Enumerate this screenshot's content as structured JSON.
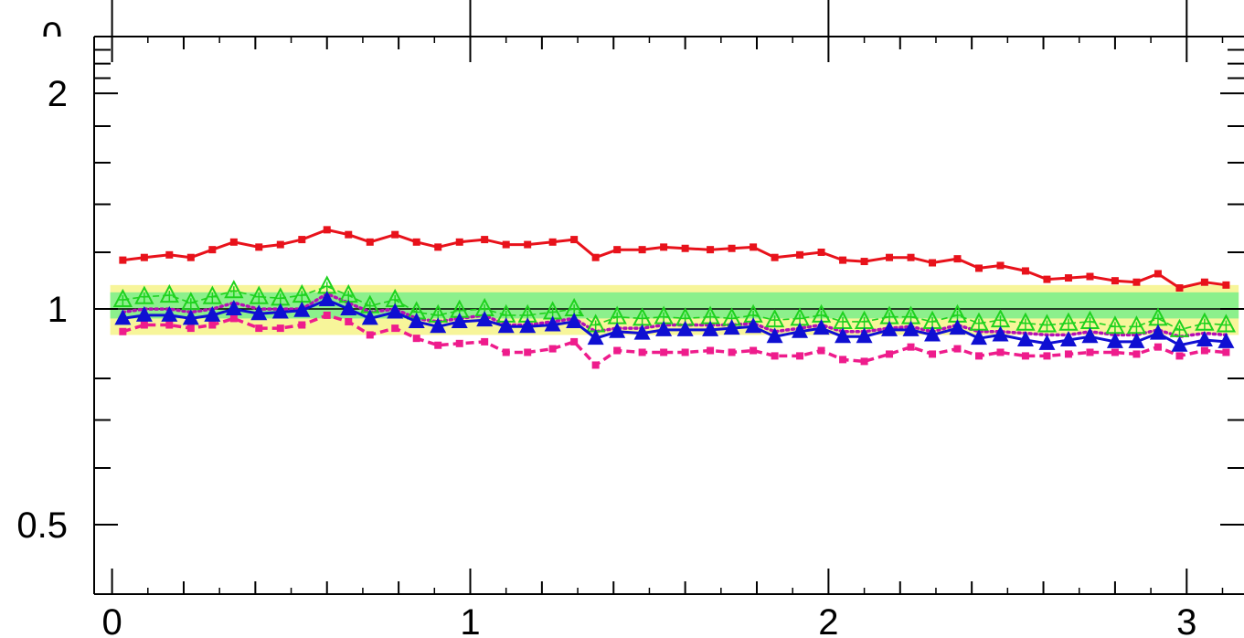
{
  "chart_data": {
    "type": "line",
    "title": "",
    "xlabel": "",
    "ylabel": "",
    "xlim": [
      -0.05,
      3.16
    ],
    "ylim": [
      0.4,
      2.4
    ],
    "y_scale": "log",
    "x_ticks": [
      0,
      1,
      2,
      3
    ],
    "x_tick_labels": [
      "0",
      "1",
      "2",
      "3"
    ],
    "y_ticks": [
      0.5,
      1,
      2
    ],
    "y_tick_labels": [
      "0.5",
      "1",
      "2"
    ],
    "top_frame_partial_label": "0",
    "reference_line": 1.0,
    "bands": [
      {
        "color": "#f7f59a",
        "lower": 0.92,
        "upper": 1.08,
        "x_start": 0.0,
        "x_end": 3.14
      },
      {
        "color": "#8cf08c",
        "lower": 0.97,
        "upper": 1.055,
        "x_start": 0.0,
        "x_end": 3.14
      }
    ],
    "x": [
      0.03,
      0.09,
      0.16,
      0.22,
      0.28,
      0.34,
      0.41,
      0.47,
      0.53,
      0.6,
      0.66,
      0.72,
      0.79,
      0.85,
      0.91,
      0.97,
      1.04,
      1.1,
      1.16,
      1.23,
      1.29,
      1.35,
      1.41,
      1.48,
      1.54,
      1.6,
      1.67,
      1.73,
      1.79,
      1.85,
      1.92,
      1.98,
      2.04,
      2.1,
      2.17,
      2.23,
      2.29,
      2.36,
      2.42,
      2.48,
      2.55,
      2.61,
      2.67,
      2.73,
      2.8,
      2.86,
      2.92,
      2.98,
      3.05,
      3.11
    ],
    "series": [
      {
        "color": "#e8121b",
        "line": "solid",
        "marker": "square",
        "values": [
          1.17,
          1.18,
          1.19,
          1.18,
          1.21,
          1.24,
          1.22,
          1.23,
          1.25,
          1.29,
          1.27,
          1.24,
          1.27,
          1.24,
          1.22,
          1.24,
          1.25,
          1.23,
          1.23,
          1.24,
          1.25,
          1.18,
          1.21,
          1.21,
          1.22,
          1.215,
          1.21,
          1.215,
          1.22,
          1.18,
          1.19,
          1.2,
          1.17,
          1.165,
          1.18,
          1.18,
          1.16,
          1.175,
          1.14,
          1.15,
          1.13,
          1.1,
          1.105,
          1.11,
          1.095,
          1.09,
          1.12,
          1.07,
          1.09,
          1.08
        ]
      },
      {
        "color": "#ee1c8c",
        "line": "dashed",
        "marker": "square",
        "values": [
          0.93,
          0.95,
          0.95,
          0.94,
          0.95,
          0.97,
          0.94,
          0.94,
          0.95,
          0.98,
          0.96,
          0.92,
          0.94,
          0.91,
          0.89,
          0.895,
          0.9,
          0.87,
          0.87,
          0.88,
          0.9,
          0.835,
          0.875,
          0.87,
          0.87,
          0.87,
          0.875,
          0.87,
          0.875,
          0.86,
          0.86,
          0.875,
          0.85,
          0.845,
          0.865,
          0.885,
          0.865,
          0.88,
          0.86,
          0.87,
          0.86,
          0.86,
          0.865,
          0.87,
          0.87,
          0.865,
          0.885,
          0.86,
          0.875,
          0.87
        ]
      },
      {
        "color": "#b40fb4",
        "line": "dotted",
        "marker": "none",
        "values": [
          0.99,
          1.0,
          1.0,
          0.99,
          1.0,
          1.02,
          1.0,
          1.0,
          1.0,
          1.05,
          1.02,
          0.99,
          1.0,
          0.97,
          0.96,
          0.97,
          0.98,
          0.95,
          0.95,
          0.96,
          0.97,
          0.93,
          0.94,
          0.94,
          0.95,
          0.95,
          0.95,
          0.95,
          0.955,
          0.93,
          0.94,
          0.95,
          0.93,
          0.93,
          0.94,
          0.945,
          0.93,
          0.95,
          0.93,
          0.93,
          0.925,
          0.92,
          0.92,
          0.93,
          0.92,
          0.92,
          0.935,
          0.915,
          0.925,
          0.92
        ]
      },
      {
        "color": "#1ed21e",
        "line": "dashed",
        "marker": "open-triangle",
        "values": [
          1.03,
          1.04,
          1.045,
          1.02,
          1.04,
          1.06,
          1.04,
          1.035,
          1.045,
          1.075,
          1.045,
          1.01,
          1.03,
          0.99,
          0.98,
          0.995,
          1.0,
          0.98,
          0.98,
          0.99,
          1.0,
          0.95,
          0.975,
          0.97,
          0.975,
          0.97,
          0.975,
          0.97,
          0.98,
          0.965,
          0.97,
          0.98,
          0.96,
          0.96,
          0.975,
          0.975,
          0.96,
          0.98,
          0.955,
          0.965,
          0.955,
          0.95,
          0.955,
          0.96,
          0.945,
          0.945,
          0.97,
          0.935,
          0.955,
          0.95
        ]
      },
      {
        "color": "#0f0fd2",
        "line": "solid",
        "marker": "filled-triangle",
        "values": [
          0.97,
          0.98,
          0.98,
          0.97,
          0.98,
          1.0,
          0.985,
          0.99,
          0.995,
          1.03,
          1.0,
          0.97,
          0.99,
          0.96,
          0.945,
          0.96,
          0.965,
          0.945,
          0.945,
          0.95,
          0.96,
          0.91,
          0.93,
          0.925,
          0.935,
          0.935,
          0.935,
          0.94,
          0.945,
          0.915,
          0.93,
          0.94,
          0.915,
          0.915,
          0.935,
          0.935,
          0.92,
          0.94,
          0.91,
          0.92,
          0.905,
          0.895,
          0.905,
          0.915,
          0.9,
          0.9,
          0.925,
          0.89,
          0.905,
          0.9
        ]
      }
    ]
  }
}
